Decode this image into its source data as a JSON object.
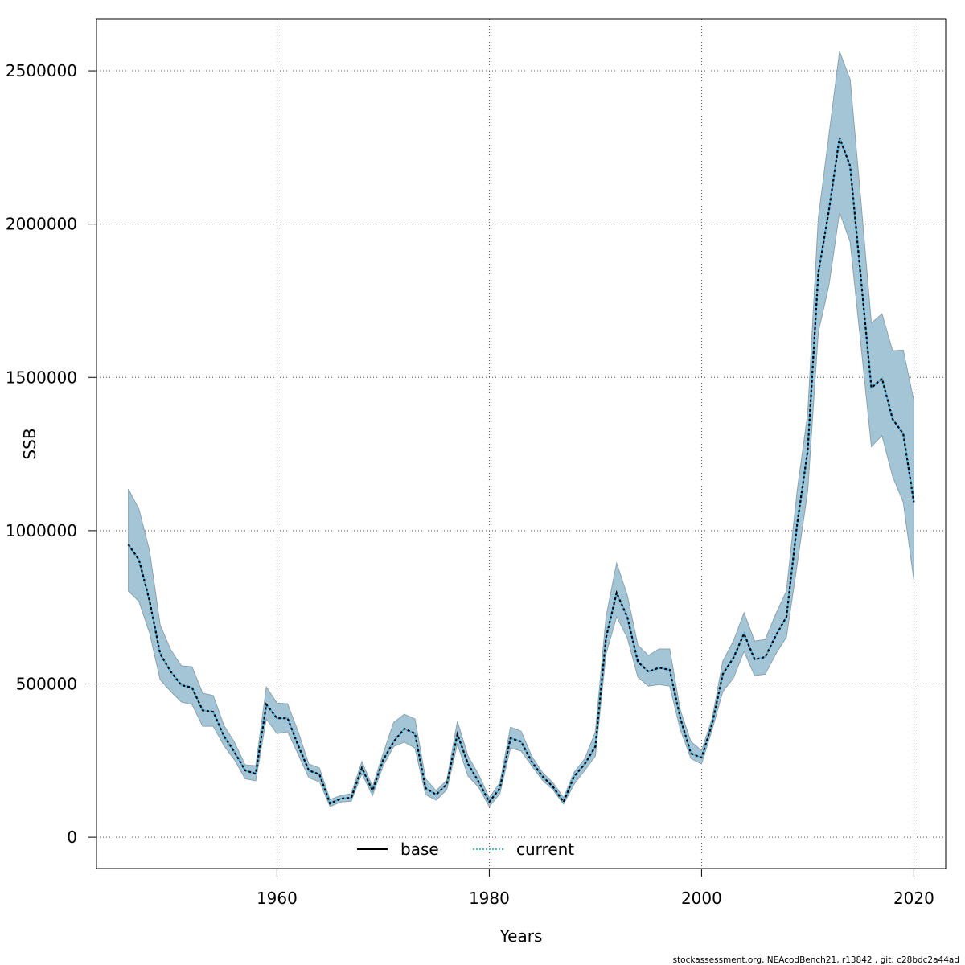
{
  "chart_data": {
    "type": "line",
    "title": "",
    "xlabel": "Years",
    "ylabel": "SSB",
    "xlim": [
      1943,
      2023
    ],
    "ylim": [
      -102000,
      2668000
    ],
    "grid": true,
    "x_ticks": [
      1960,
      1980,
      2000,
      2020
    ],
    "x_tick_labels": [
      "1960",
      "1980",
      "2000",
      "2020"
    ],
    "y_ticks": [
      0,
      500000,
      1000000,
      1500000,
      2000000,
      2500000
    ],
    "y_tick_labels": [
      "0",
      "500000",
      "1000000",
      "1500000",
      "2000000",
      "2500000"
    ],
    "legend_placement": "bottom-center",
    "legend": [
      {
        "name": "base",
        "style": "solid",
        "color": "#000000"
      },
      {
        "name": "current",
        "style": "dotted",
        "color": "#4fb3e0"
      }
    ],
    "band_color": "#a4c5d6",
    "years": [
      1946,
      1947,
      1948,
      1949,
      1950,
      1951,
      1952,
      1953,
      1954,
      1955,
      1956,
      1957,
      1958,
      1959,
      1960,
      1961,
      1962,
      1963,
      1964,
      1965,
      1966,
      1967,
      1968,
      1969,
      1970,
      1971,
      1972,
      1973,
      1974,
      1975,
      1976,
      1977,
      1978,
      1979,
      1980,
      1981,
      1982,
      1983,
      1984,
      1985,
      1986,
      1987,
      1988,
      1989,
      1990,
      1991,
      1992,
      1993,
      1994,
      1995,
      1996,
      1997,
      1998,
      1999,
      2000,
      2001,
      2002,
      2003,
      2004,
      2005,
      2006,
      2007,
      2008,
      2009,
      2010,
      2011,
      2012,
      2013,
      2014,
      2015,
      2016,
      2017,
      2018,
      2019,
      2020
    ],
    "series": [
      {
        "name": "current",
        "values": [
          955000,
          905000,
          771000,
          598000,
          540000,
          496000,
          488000,
          414000,
          409000,
          330000,
          278000,
          218000,
          207000,
          433000,
          388000,
          388000,
          299000,
          218000,
          205000,
          110000,
          126000,
          129000,
          226000,
          152000,
          252000,
          312000,
          354000,
          338000,
          160000,
          139000,
          173000,
          336000,
          239000,
          181000,
          115000,
          160000,
          323000,
          312000,
          247000,
          199000,
          165000,
          115000,
          199000,
          239000,
          296000,
          651000,
          797000,
          719000,
          572000,
          540000,
          553000,
          546000,
          388000,
          273000,
          260000,
          370000,
          532000,
          585000,
          664000,
          580000,
          588000,
          658000,
          719000,
          1020000,
          1261000,
          1840000,
          2045000,
          2282000,
          2189000,
          1828000,
          1466000,
          1496000,
          1364000,
          1316000,
          1093000
        ]
      },
      {
        "name": "base",
        "values": [
          955000,
          905000,
          771000,
          598000,
          540000,
          496000,
          488000,
          414000,
          409000,
          330000,
          278000,
          218000,
          207000,
          433000,
          388000,
          388000,
          299000,
          218000,
          205000,
          110000,
          126000,
          129000,
          226000,
          152000,
          252000,
          312000,
          354000,
          338000,
          160000,
          139000,
          173000,
          336000,
          239000,
          181000,
          115000,
          160000,
          323000,
          312000,
          247000,
          199000,
          165000,
          115000,
          199000,
          239000,
          296000,
          651000,
          797000,
          719000,
          572000,
          540000,
          553000,
          546000,
          388000,
          273000,
          260000,
          370000,
          532000,
          585000,
          664000,
          580000,
          588000,
          658000,
          719000,
          1020000,
          1261000,
          1840000,
          2045000,
          2282000,
          2189000,
          1828000,
          1466000,
          1496000,
          1364000,
          1316000,
          1093000
        ]
      }
    ],
    "ci_upper": [
      1136000,
      1070000,
      934000,
      692000,
      611000,
      559000,
      556000,
      470000,
      462000,
      365000,
      310000,
      236000,
      233000,
      490000,
      438000,
      435000,
      344000,
      239000,
      226000,
      123000,
      136000,
      142000,
      247000,
      165000,
      273000,
      375000,
      401000,
      386000,
      191000,
      152000,
      186000,
      378000,
      265000,
      205000,
      129000,
      178000,
      359000,
      346000,
      265000,
      212000,
      178000,
      129000,
      212000,
      257000,
      344000,
      719000,
      894000,
      790000,
      627000,
      593000,
      614000,
      614000,
      414000,
      312000,
      283000,
      388000,
      574000,
      640000,
      732000,
      640000,
      645000,
      729000,
      803000,
      1129000,
      1382000,
      2020000,
      2290000,
      2563000,
      2472000,
      2081000,
      1677000,
      1707000,
      1587000,
      1589000,
      1424000
    ],
    "ci_lower": [
      803000,
      769000,
      666000,
      514000,
      475000,
      441000,
      433000,
      362000,
      362000,
      299000,
      252000,
      191000,
      184000,
      386000,
      338000,
      344000,
      270000,
      194000,
      181000,
      100000,
      115000,
      118000,
      207000,
      136000,
      233000,
      296000,
      310000,
      291000,
      139000,
      121000,
      155000,
      304000,
      199000,
      163000,
      100000,
      142000,
      291000,
      281000,
      233000,
      186000,
      155000,
      108000,
      173000,
      218000,
      265000,
      598000,
      719000,
      651000,
      522000,
      493000,
      498000,
      493000,
      351000,
      257000,
      239000,
      351000,
      475000,
      519000,
      606000,
      527000,
      532000,
      598000,
      653000,
      888000,
      1129000,
      1647000,
      1800000,
      2039000,
      1942000,
      1611000,
      1274000,
      1310000,
      1177000,
      1093000,
      840000
    ]
  },
  "footer": "stockassessment.org, NEAcodBench21, r13842 , git: c28bdc2a44ad"
}
